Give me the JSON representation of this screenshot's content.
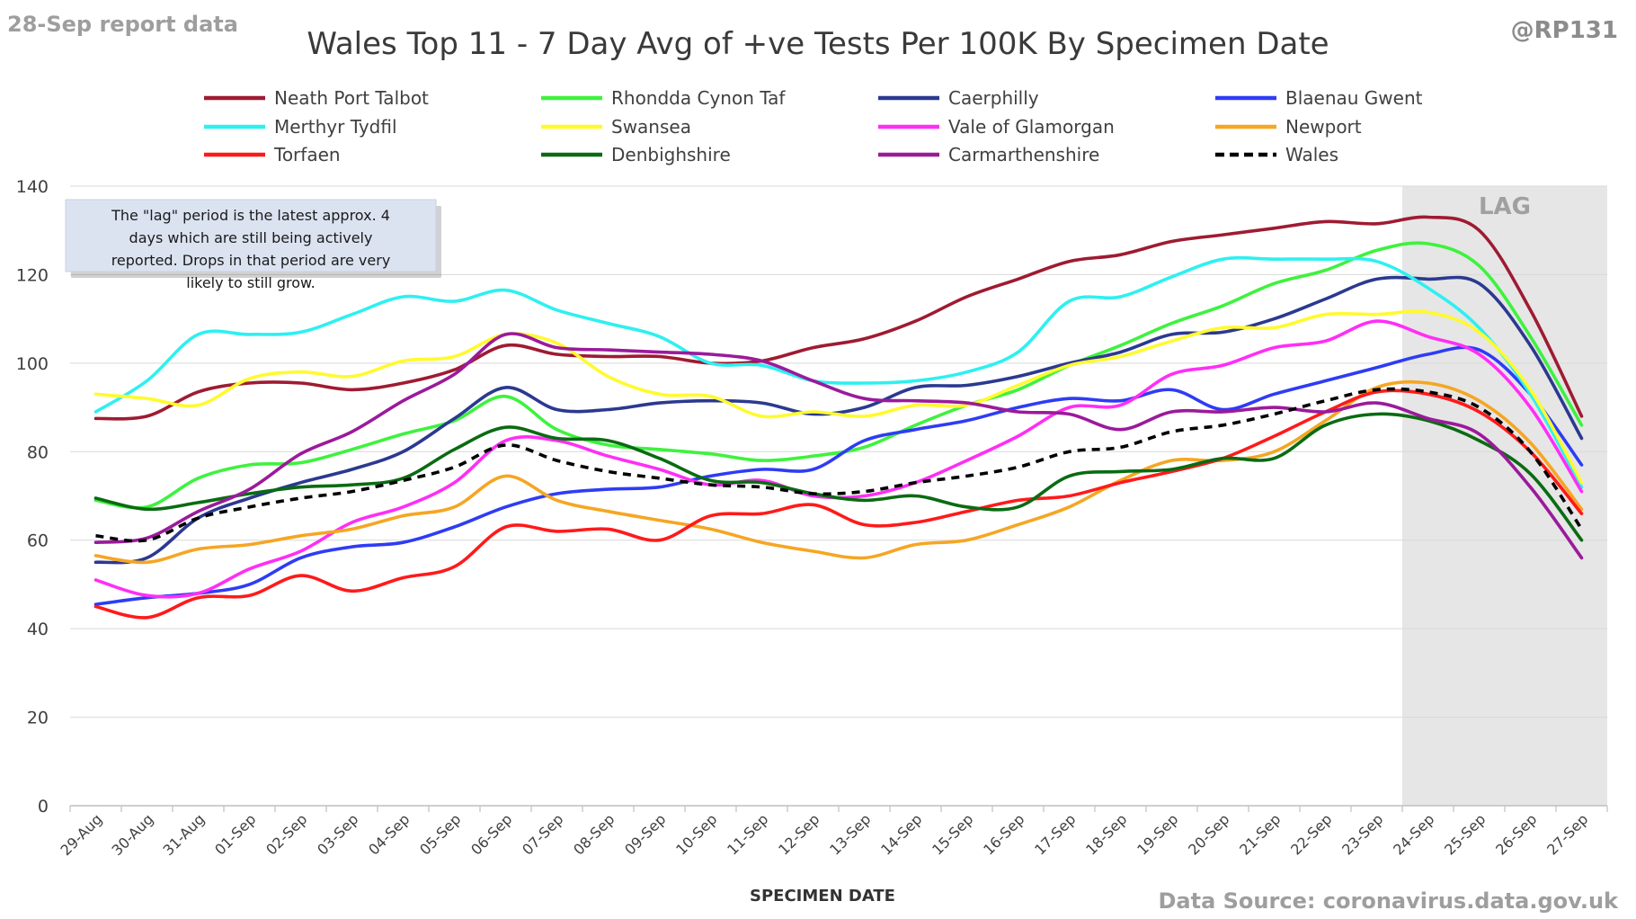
{
  "report_label": "28-Sep report data",
  "author_handle": "@RP131",
  "source_label": "Data Source: coronavirus.data.gov.uk",
  "chart_data": {
    "type": "line",
    "title": "Wales Top 11 - 7 Day Avg of +ve Tests Per 100K By Specimen Date",
    "xlabel": "SPECIMEN DATE",
    "ylabel": "",
    "ylim": [
      0,
      140
    ],
    "yticks": [
      0,
      20,
      40,
      60,
      80,
      100,
      120,
      140
    ],
    "grid": true,
    "legend_position": "top",
    "categories": [
      "29-Aug",
      "30-Aug",
      "31-Aug",
      "01-Sep",
      "02-Sep",
      "03-Sep",
      "04-Sep",
      "05-Sep",
      "06-Sep",
      "07-Sep",
      "08-Sep",
      "09-Sep",
      "10-Sep",
      "11-Sep",
      "12-Sep",
      "13-Sep",
      "14-Sep",
      "15-Sep",
      "16-Sep",
      "17-Sep",
      "18-Sep",
      "19-Sep",
      "20-Sep",
      "21-Sep",
      "22-Sep",
      "23-Sep",
      "24-Sep",
      "25-Sep",
      "26-Sep",
      "27-Sep"
    ],
    "lag": {
      "label": "LAG",
      "start": "24-Sep",
      "end": "27-Sep",
      "color": "#e6e6e6"
    },
    "annotation": "The \"lag\" period is the latest approx. 4 days which are still being actively reported. Drops in that period are very likely to still grow.",
    "series": [
      {
        "name": "Neath Port Talbot",
        "color": "#9e1b32",
        "dash": false,
        "values": [
          87.5,
          88,
          93.5,
          95.5,
          95.5,
          94,
          95.5,
          98.5,
          104,
          102,
          101.5,
          101.5,
          100,
          100.5,
          103.5,
          105.5,
          109.5,
          115,
          119,
          123,
          124.5,
          127.5,
          129,
          130.5,
          132,
          131.5,
          133,
          130,
          112,
          88
        ]
      },
      {
        "name": "Rhondda Cynon Taf",
        "color": "#3ef23e",
        "dash": false,
        "values": [
          69,
          67.5,
          74,
          77,
          77.5,
          80.5,
          84,
          87,
          92.5,
          85,
          81.5,
          80.5,
          79.5,
          78,
          79,
          81,
          86,
          90.5,
          94,
          99.5,
          104,
          109,
          113,
          118,
          121,
          125.5,
          127,
          122,
          106,
          86
        ]
      },
      {
        "name": "Caerphilly",
        "color": "#2b3990",
        "dash": false,
        "values": [
          55,
          56,
          65,
          69.5,
          73,
          76,
          80,
          87.5,
          94.5,
          89.5,
          89.5,
          91,
          91.5,
          91,
          88.5,
          90,
          94.5,
          95,
          97,
          100,
          102.5,
          106.5,
          107,
          110,
          114.5,
          119,
          119,
          118,
          104,
          83
        ]
      },
      {
        "name": "Blaenau Gwent",
        "color": "#2e3cf5",
        "dash": false,
        "values": [
          45.5,
          47,
          48,
          50,
          56,
          58.5,
          59.5,
          63,
          67.5,
          70.5,
          71.5,
          72,
          74.5,
          76,
          76,
          82.5,
          85,
          87,
          90,
          92,
          91.5,
          94,
          89.5,
          93,
          96,
          99,
          102,
          103,
          93,
          77
        ]
      },
      {
        "name": "Merthyr Tydfil",
        "color": "#2ef0f0",
        "dash": false,
        "values": [
          89,
          96,
          106.5,
          106.5,
          107,
          111,
          115,
          114,
          116.5,
          112,
          109,
          106,
          100,
          99.5,
          96,
          95.5,
          96,
          98,
          102.5,
          114,
          115,
          119.5,
          123.5,
          123.5,
          123.5,
          123,
          117,
          108,
          93,
          72
        ]
      },
      {
        "name": "Swansea",
        "color": "#fffa2e",
        "dash": false,
        "values": [
          93,
          92,
          90.5,
          96.5,
          98,
          97,
          100.5,
          101.5,
          106.5,
          104.5,
          97,
          93,
          92.5,
          88,
          89,
          88,
          90.5,
          90.5,
          95,
          99.5,
          101.5,
          105,
          108,
          108,
          111,
          111,
          111.5,
          107,
          94,
          73
        ]
      },
      {
        "name": "Vale of Glamorgan",
        "color": "#ff2ef5",
        "dash": false,
        "values": [
          51,
          47.5,
          48,
          53.5,
          57.5,
          64,
          67.5,
          73,
          82.5,
          82.5,
          79,
          76,
          72.5,
          73.5,
          70,
          70,
          73,
          78,
          83.5,
          90,
          90.5,
          97.5,
          99.5,
          103.5,
          105,
          109.5,
          106,
          102,
          90,
          71
        ]
      },
      {
        "name": "Newport",
        "color": "#f5a623",
        "dash": false,
        "values": [
          56.5,
          55,
          58,
          59,
          61,
          62.5,
          65.5,
          67.5,
          74.5,
          69,
          66.5,
          64.5,
          62.5,
          59.5,
          57.5,
          56,
          59,
          60,
          63.5,
          67.5,
          73.5,
          78,
          78,
          80,
          87,
          94.5,
          95.5,
          91.5,
          82,
          67
        ]
      },
      {
        "name": "Torfaen",
        "color": "#ff1a1a",
        "dash": false,
        "values": [
          45,
          42.5,
          47,
          47.5,
          52,
          48.5,
          51.5,
          54,
          63,
          62,
          62.5,
          60,
          65.5,
          66,
          68,
          63.5,
          64,
          66.5,
          69,
          70,
          73,
          75.5,
          78.5,
          83.5,
          89,
          93.5,
          93,
          89,
          80,
          66
        ]
      },
      {
        "name": "Denbighshire",
        "color": "#0a6b12",
        "dash": false,
        "values": [
          69.5,
          67,
          68.5,
          70.5,
          72,
          72.5,
          74,
          80.5,
          85.5,
          83,
          82.5,
          78.5,
          73.5,
          73,
          70.5,
          69,
          70,
          67.5,
          67.5,
          74.5,
          75.5,
          76,
          78.5,
          78.5,
          86,
          88.5,
          87,
          82.5,
          75,
          60
        ]
      },
      {
        "name": "Carmarthenshire",
        "color": "#9b1a9b",
        "dash": false,
        "values": [
          59.5,
          60.5,
          66.5,
          71.5,
          79.5,
          84.5,
          91.5,
          97.5,
          106.5,
          103.5,
          103,
          102.5,
          102,
          100.5,
          96,
          92,
          91.5,
          91,
          89,
          88.5,
          85,
          89,
          89,
          90,
          89,
          91,
          87.5,
          84,
          72,
          56
        ]
      },
      {
        "name": "Wales",
        "color": "#000000",
        "dash": true,
        "values": [
          61,
          60,
          65,
          67.5,
          69.5,
          71,
          73.5,
          76.5,
          81.5,
          78,
          75.5,
          74,
          72.5,
          72,
          70.5,
          71,
          73,
          74.5,
          76.5,
          80,
          81,
          84.5,
          86,
          88.5,
          91.5,
          94,
          93.5,
          90,
          80,
          62.5
        ]
      }
    ]
  }
}
